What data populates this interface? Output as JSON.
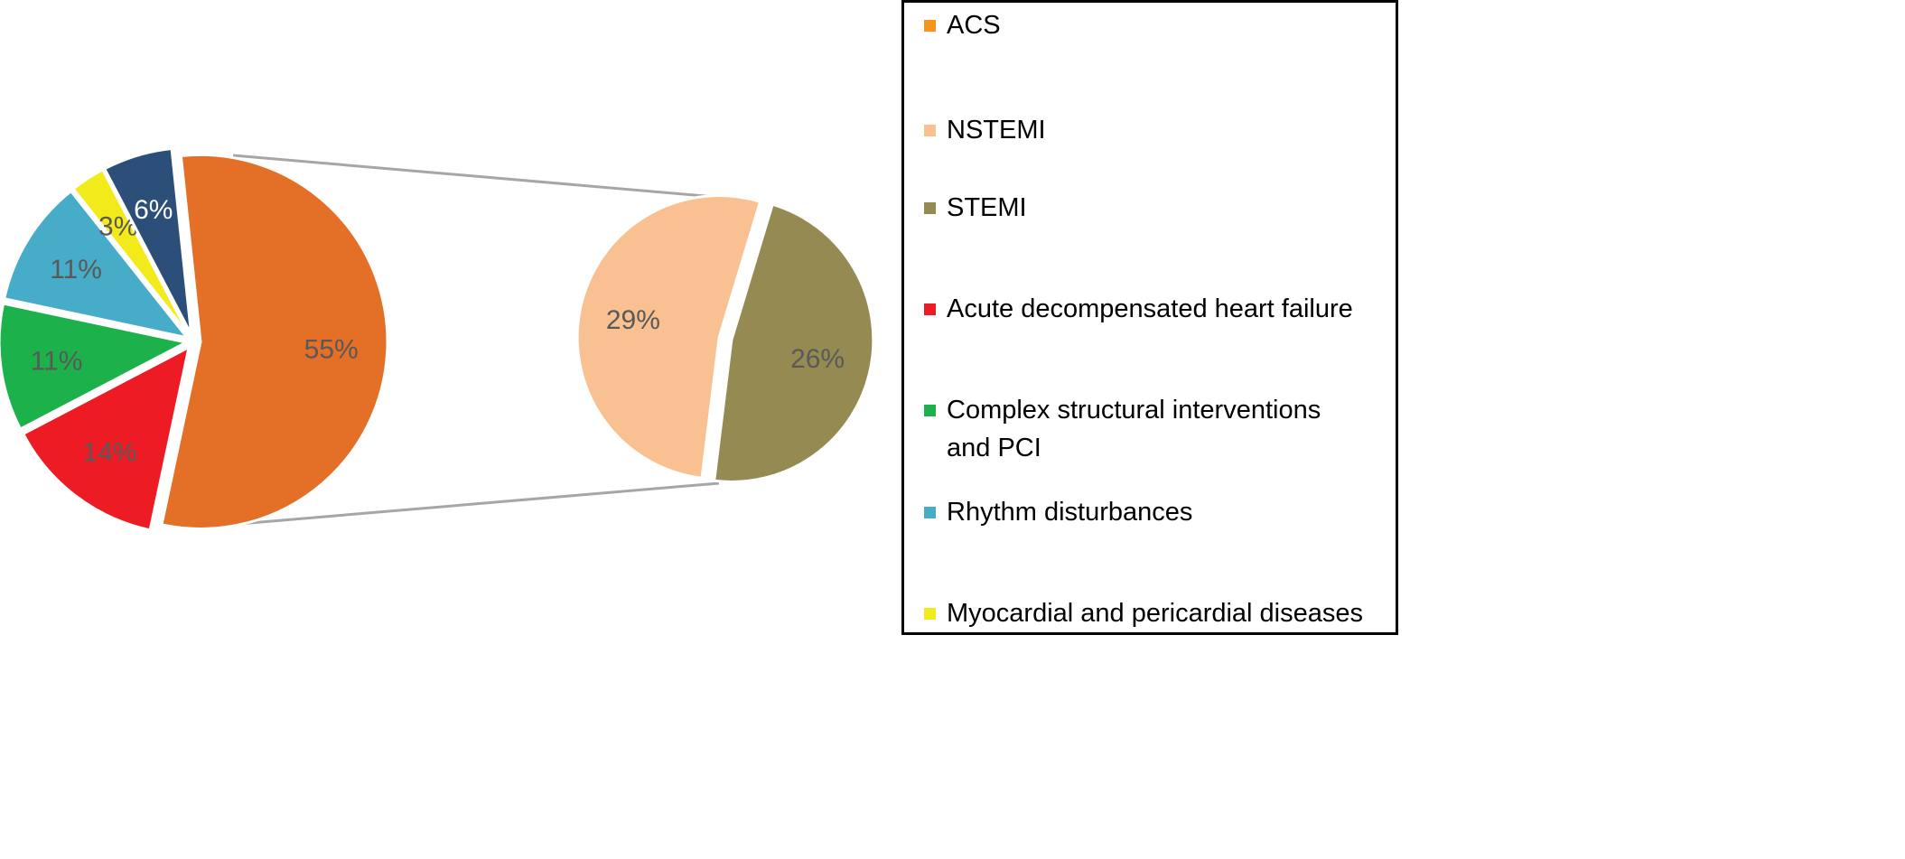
{
  "chart_data": {
    "type": "pie",
    "subtype": "pie-of-pie",
    "title": "",
    "main_pie": [
      {
        "name": "ACS",
        "value": 55,
        "label": "55%",
        "color": "#E46F26",
        "label_color": "#595959"
      },
      {
        "name": "Acute decompensated heart failure",
        "value": 14,
        "label": "14%",
        "color": "#ED1C24",
        "label_color": "#595959"
      },
      {
        "name": "Complex structural interventions and PCI",
        "value": 11,
        "label": "11%",
        "color": "#1DB14B",
        "label_color": "#595959"
      },
      {
        "name": "Rhythm disturbances",
        "value": 11,
        "label": "11%",
        "color": "#46ACC8",
        "label_color": "#595959"
      },
      {
        "name": "Myocardial and pericardial diseases",
        "value": 3,
        "label": "3%",
        "color": "#F2EA1A",
        "label_color": "#595959"
      },
      {
        "name": "",
        "value": 6,
        "label": "6%",
        "color": "#2B4F78",
        "label_color": "#FFFFFF"
      }
    ],
    "secondary_pie_of": "ACS",
    "secondary_pie": [
      {
        "name": "NSTEMI",
        "value": 29,
        "label": "29%",
        "color": "#F9C192",
        "label_color": "#595959"
      },
      {
        "name": "STEMI",
        "value": 26,
        "label": "26%",
        "color": "#958B52",
        "label_color": "#595959"
      }
    ],
    "legend": {
      "placement": "right",
      "entries": [
        {
          "label": "ACS",
          "color": "#F7941D"
        },
        {
          "label": "NSTEMI",
          "color": "#F9C192"
        },
        {
          "label": "STEMI",
          "color": "#958B52"
        },
        {
          "label": "Acute decompensated heart failure",
          "color": "#ED1C24"
        },
        {
          "label": "Complex structural interventions and PCI",
          "color": "#1DB14B"
        },
        {
          "label": "Rhythm disturbances",
          "color": "#46ACC8"
        },
        {
          "label": "Myocardial and pericardial diseases",
          "color": "#F2EA1A"
        }
      ]
    }
  }
}
